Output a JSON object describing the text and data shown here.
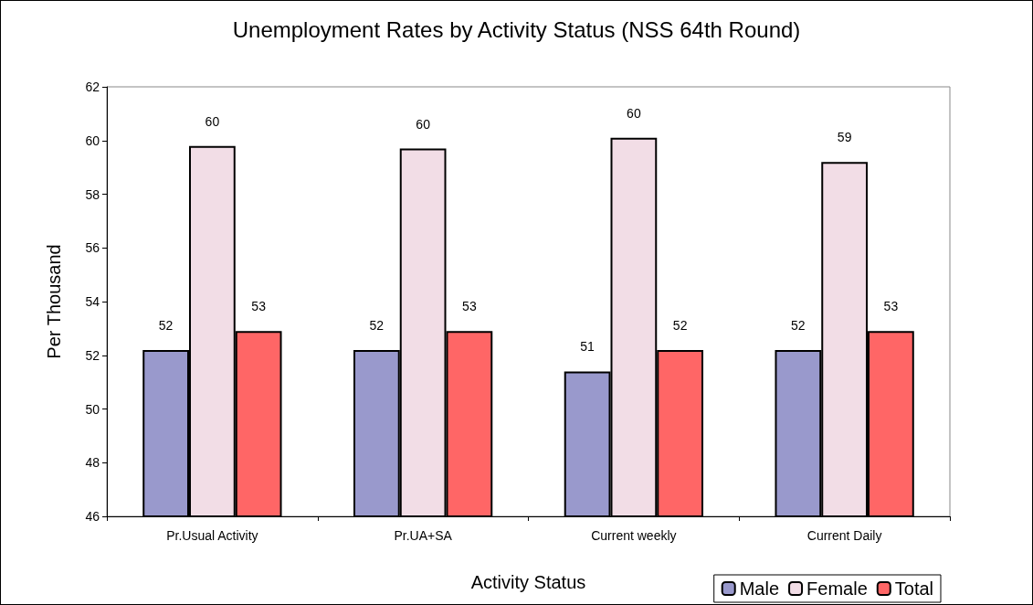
{
  "chart_data": {
    "type": "bar",
    "title": "Unemployment Rates by Activity Status (NSS 64th Round)",
    "xlabel": "Activity Status",
    "ylabel": "Per Thousand",
    "categories": [
      "Pr.Usual Activity",
      "Pr.UA+SA",
      "Current weekly",
      "Current Daily"
    ],
    "series": [
      {
        "name": "Male",
        "color": "#9999cc",
        "values": [
          52.2,
          52.2,
          51.4,
          52.2
        ],
        "value_labels": [
          "52",
          "52",
          "51",
          "52"
        ]
      },
      {
        "name": "Female",
        "color": "#f2dde6",
        "values": [
          59.8,
          59.7,
          60.1,
          59.2
        ],
        "value_labels": [
          "60",
          "60",
          "60",
          "59"
        ]
      },
      {
        "name": "Total",
        "color": "#ff6666",
        "values": [
          52.9,
          52.9,
          52.2,
          52.9
        ],
        "value_labels": [
          "53",
          "53",
          "52",
          "53"
        ]
      }
    ],
    "ylim": [
      46,
      62
    ],
    "yticks": [
      46,
      48,
      50,
      52,
      54,
      56,
      58,
      60,
      62
    ],
    "grid": false,
    "legend": "bottom right"
  }
}
